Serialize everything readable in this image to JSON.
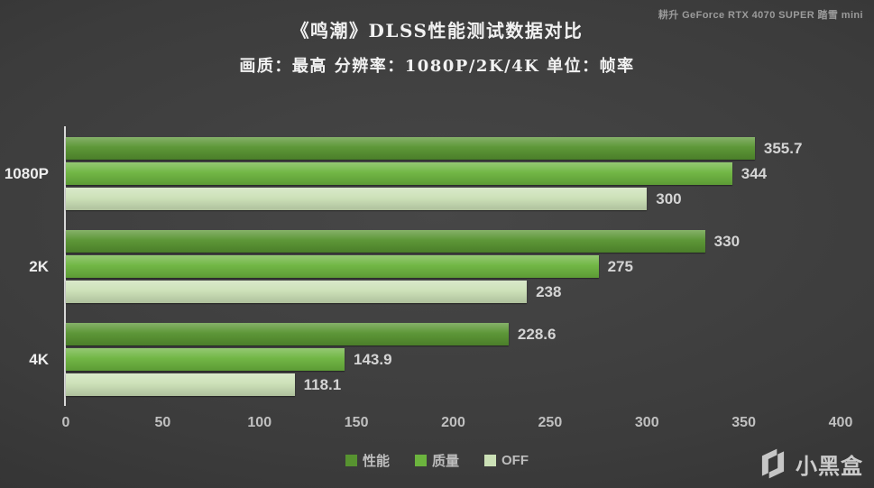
{
  "header": {
    "title": "《鸣潮》DLSS性能测试数据对比",
    "subtitle": "画质：最高 分辨率：1080P/2K/4K 单位：帧率",
    "gpu_label": "耕升 GeForce RTX 4070  SUPER 踏雪 mini"
  },
  "chart_data": {
    "type": "bar",
    "orientation": "horizontal",
    "title": "《鸣潮》DLSS性能测试数据对比",
    "subtitle": "画质：最高 分辨率：1080P/2K/4K 单位：帧率",
    "unit": "帧率",
    "categories": [
      "1080P",
      "2K",
      "4K"
    ],
    "series": [
      {
        "name": "性能",
        "color": "#579330",
        "values": [
          355.7,
          330,
          228.6
        ]
      },
      {
        "name": "质量",
        "color": "#6cb43e",
        "values": [
          344,
          275,
          143.9
        ]
      },
      {
        "name": "OFF",
        "color": "#cbe0b6",
        "values": [
          300,
          238,
          118.1
        ]
      }
    ],
    "xlim": [
      0,
      400
    ],
    "xticks": [
      0,
      50,
      100,
      150,
      200,
      250,
      300,
      350,
      400
    ],
    "grid": false,
    "value_labels": true,
    "legend_position": "bottom",
    "axis_color": "#d8d8d8",
    "label_color": "#d4d4d4"
  },
  "footer": {
    "brand": "小黑盒"
  }
}
